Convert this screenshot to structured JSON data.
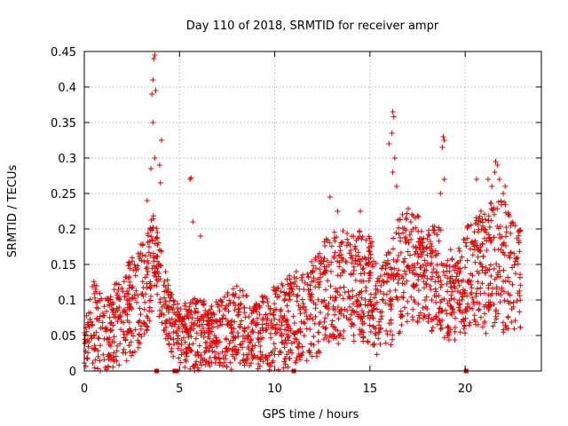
{
  "chart_data": {
    "type": "scatter",
    "title": "Day 110 of 2018, SRMTID for receiver ampr",
    "xlabel": "GPS time / hours",
    "ylabel": "SRMTID / TECUs",
    "xlim": [
      0,
      24
    ],
    "ylim": [
      0,
      0.45
    ],
    "grid": true,
    "x_ticks": [
      0,
      5,
      10,
      15,
      20
    ],
    "x_tick_labels": [
      "0",
      "5",
      "10",
      "15",
      "20"
    ],
    "y_ticks": [
      0,
      0.05,
      0.1,
      0.15,
      0.2,
      0.25,
      0.3,
      0.35,
      0.4,
      0.45
    ],
    "y_tick_labels": [
      "0",
      "0.05",
      "0.1",
      "0.15",
      "0.2",
      "0.25",
      "0.3",
      "0.35",
      "0.4",
      "0.45"
    ],
    "marker": "+",
    "color": "#e00000",
    "envelope_hours": [
      0,
      0.5,
      1.0,
      1.5,
      2.0,
      2.5,
      3.0,
      3.3,
      3.6,
      3.8,
      4.0,
      4.3,
      4.6,
      5.0,
      5.5,
      6.0,
      6.5,
      7.0,
      7.5,
      8.0,
      8.5,
      9.0,
      9.5,
      10.0,
      10.5,
      11.0,
      11.5,
      12.0,
      12.5,
      13.0,
      13.5,
      14.0,
      14.5,
      15.0,
      15.5,
      16.0,
      16.5,
      17.0,
      17.5,
      18.0,
      18.5,
      19.0,
      19.5,
      20.0,
      20.5,
      21.0,
      21.5,
      22.0,
      22.5,
      22.9
    ],
    "envelope_low": [
      0.0,
      0.0,
      0.0,
      0.0,
      0.01,
      0.02,
      0.03,
      0.05,
      0.08,
      0.1,
      0.06,
      0.04,
      0.02,
      0.01,
      0.0,
      0.0,
      0.0,
      0.0,
      0.0,
      0.0,
      0.0,
      0.0,
      0.0,
      0.0,
      0.0,
      0.01,
      0.01,
      0.02,
      0.02,
      0.03,
      0.03,
      0.04,
      0.04,
      0.03,
      0.02,
      0.03,
      0.05,
      0.07,
      0.06,
      0.05,
      0.05,
      0.04,
      0.04,
      0.05,
      0.06,
      0.05,
      0.05,
      0.05,
      0.05,
      0.05
    ],
    "envelope_high": [
      0.07,
      0.13,
      0.1,
      0.12,
      0.14,
      0.16,
      0.18,
      0.2,
      0.22,
      0.21,
      0.19,
      0.14,
      0.11,
      0.09,
      0.1,
      0.11,
      0.09,
      0.1,
      0.11,
      0.12,
      0.11,
      0.1,
      0.11,
      0.12,
      0.13,
      0.14,
      0.15,
      0.16,
      0.18,
      0.2,
      0.2,
      0.19,
      0.2,
      0.19,
      0.15,
      0.17,
      0.22,
      0.23,
      0.22,
      0.2,
      0.21,
      0.19,
      0.16,
      0.2,
      0.22,
      0.23,
      0.24,
      0.24,
      0.22,
      0.2
    ],
    "spikes": [
      {
        "x": 3.55,
        "y": 0.39
      },
      {
        "x": 3.6,
        "y": 0.41
      },
      {
        "x": 3.65,
        "y": 0.44
      },
      {
        "x": 3.7,
        "y": 0.445
      },
      {
        "x": 3.75,
        "y": 0.395
      },
      {
        "x": 3.6,
        "y": 0.35
      },
      {
        "x": 3.7,
        "y": 0.3
      },
      {
        "x": 3.5,
        "y": 0.285
      },
      {
        "x": 4.05,
        "y": 0.325
      },
      {
        "x": 4.0,
        "y": 0.265
      },
      {
        "x": 3.95,
        "y": 0.29
      },
      {
        "x": 3.3,
        "y": 0.24
      },
      {
        "x": 5.6,
        "y": 0.272
      },
      {
        "x": 5.55,
        "y": 0.27
      },
      {
        "x": 5.7,
        "y": 0.21
      },
      {
        "x": 6.1,
        "y": 0.19
      },
      {
        "x": 16.2,
        "y": 0.365
      },
      {
        "x": 16.25,
        "y": 0.358
      },
      {
        "x": 16.15,
        "y": 0.335
      },
      {
        "x": 16.0,
        "y": 0.32
      },
      {
        "x": 16.3,
        "y": 0.3
      },
      {
        "x": 16.2,
        "y": 0.28
      },
      {
        "x": 16.4,
        "y": 0.26
      },
      {
        "x": 18.85,
        "y": 0.33
      },
      {
        "x": 18.9,
        "y": 0.325
      },
      {
        "x": 18.8,
        "y": 0.315
      },
      {
        "x": 18.9,
        "y": 0.27
      },
      {
        "x": 18.7,
        "y": 0.25
      },
      {
        "x": 21.6,
        "y": 0.295
      },
      {
        "x": 21.7,
        "y": 0.29
      },
      {
        "x": 21.55,
        "y": 0.28
      },
      {
        "x": 21.8,
        "y": 0.27
      },
      {
        "x": 21.2,
        "y": 0.27
      },
      {
        "x": 20.6,
        "y": 0.27
      },
      {
        "x": 22.1,
        "y": 0.26
      },
      {
        "x": 22.0,
        "y": 0.25
      },
      {
        "x": 21.4,
        "y": 0.26
      },
      {
        "x": 12.9,
        "y": 0.245
      },
      {
        "x": 14.5,
        "y": 0.225
      },
      {
        "x": 13.3,
        "y": 0.225
      }
    ],
    "gaps_on_axis": [
      3.8,
      4.75,
      4.85,
      11.0,
      20.05
    ]
  }
}
